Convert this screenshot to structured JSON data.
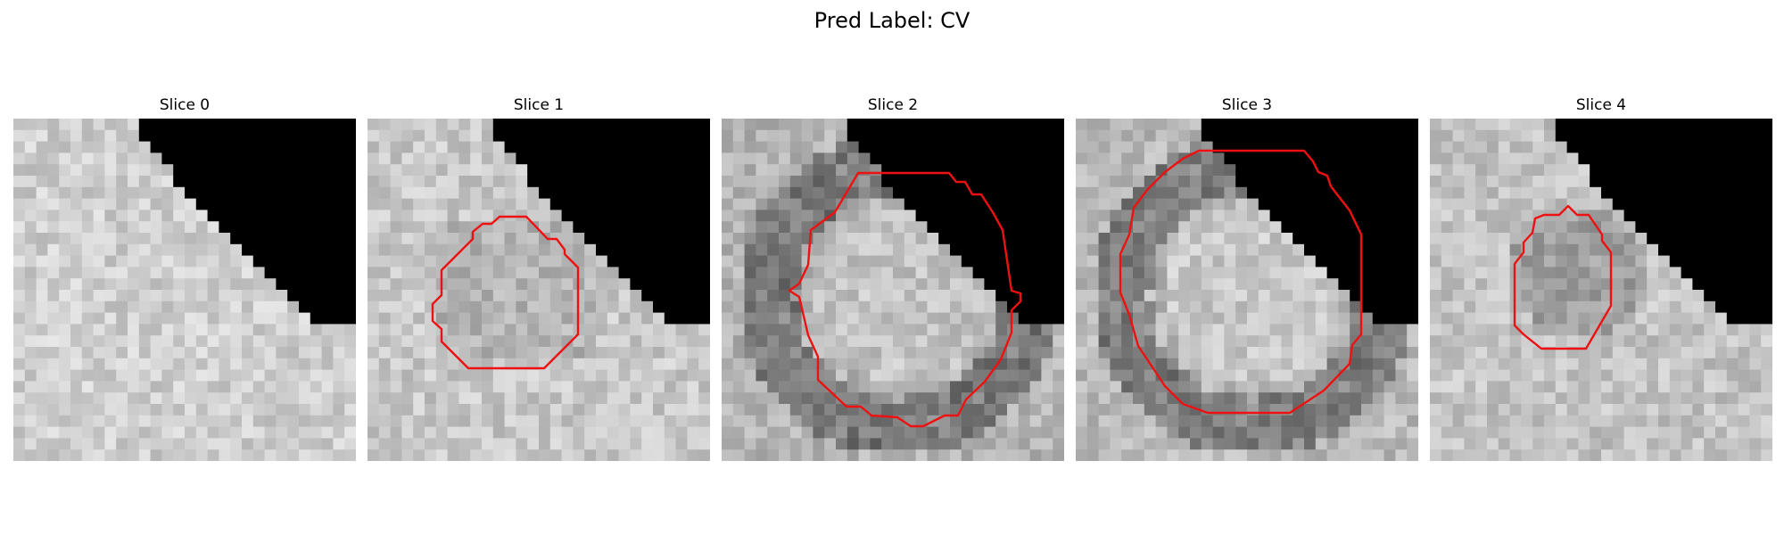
{
  "title": "Pred Label: CV",
  "colors": {
    "contour": "#ee1111",
    "mask": "#000000",
    "background": "#ffffff"
  },
  "panels": [
    {
      "label": "Slice 0",
      "seed": 11,
      "base": 206,
      "ring": null,
      "center": null,
      "has_contour": false
    },
    {
      "label": "Slice 1",
      "seed": 23,
      "base": 200,
      "ring": null,
      "center": null,
      "has_contour": true
    },
    {
      "label": "Slice 2",
      "seed": 37,
      "base": 180,
      "ring": "dark",
      "center": "light",
      "has_contour": true
    },
    {
      "label": "Slice 3",
      "seed": 53,
      "base": 185,
      "ring": "dark",
      "center": "light",
      "has_contour": true
    },
    {
      "label": "Slice 4",
      "seed": 71,
      "base": 195,
      "ring": null,
      "center": "dark",
      "has_contour": true
    }
  ]
}
